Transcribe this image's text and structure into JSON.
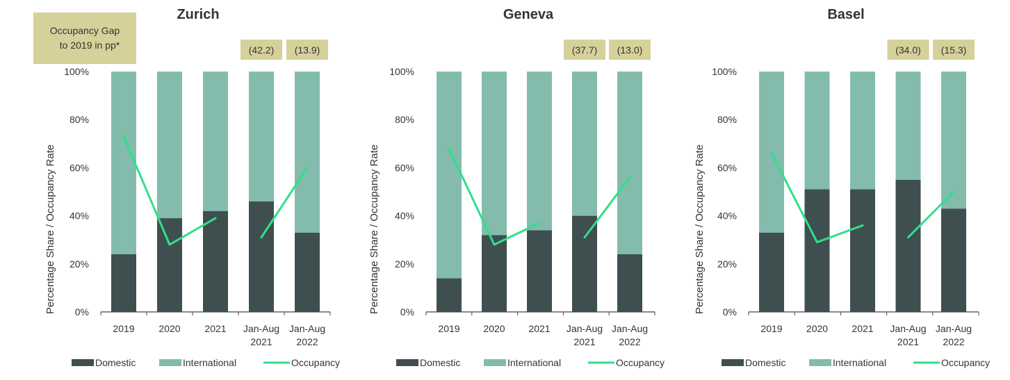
{
  "gap_note": {
    "line1": "Occupancy Gap",
    "line2": "to 2019 in pp*"
  },
  "colors": {
    "domestic": "#3f4f50",
    "international": "#83bcad",
    "occupancy": "#2fe08a",
    "gap_box": "#d5d19a",
    "axis": "#444444",
    "text": "#333333"
  },
  "chart_data": [
    {
      "type": "bar",
      "title": "Zurich",
      "ylabel": "Percentage Share / Occupancy Rate",
      "ylim": [
        0,
        100
      ],
      "yticks": [
        "0%",
        "20%",
        "40%",
        "60%",
        "80%",
        "100%"
      ],
      "categories": [
        [
          "2019"
        ],
        [
          "2020"
        ],
        [
          "2021"
        ],
        [
          "Jan-Aug",
          "2021"
        ],
        [
          "Jan-Aug",
          "2022"
        ]
      ],
      "series": [
        {
          "name": "Domestic",
          "type": "stacked-bar",
          "values": [
            24,
            39,
            42,
            46,
            33
          ]
        },
        {
          "name": "International",
          "type": "stacked-bar",
          "values": [
            76,
            61,
            58,
            54,
            67
          ]
        },
        {
          "name": "Occupancy",
          "type": "line",
          "segments": [
            [
              [
                0,
                73
              ],
              [
                1,
                28
              ],
              [
                2,
                39
              ]
            ],
            [
              [
                3,
                31
              ],
              [
                4,
                60
              ]
            ]
          ]
        }
      ],
      "gaps": [
        null,
        null,
        null,
        "(42.2)",
        "(13.9)"
      ],
      "legend": "bottom"
    },
    {
      "type": "bar",
      "title": "Geneva",
      "ylabel": "Percentage Share / Occupancy Rate",
      "ylim": [
        0,
        100
      ],
      "yticks": [
        "0%",
        "20%",
        "40%",
        "60%",
        "80%",
        "100%"
      ],
      "categories": [
        [
          "2019"
        ],
        [
          "2020"
        ],
        [
          "2021"
        ],
        [
          "Jan-Aug",
          "2021"
        ],
        [
          "Jan-Aug",
          "2022"
        ]
      ],
      "series": [
        {
          "name": "Domestic",
          "type": "stacked-bar",
          "values": [
            14,
            32,
            34,
            40,
            24
          ]
        },
        {
          "name": "International",
          "type": "stacked-bar",
          "values": [
            86,
            68,
            66,
            60,
            76
          ]
        },
        {
          "name": "Occupancy",
          "type": "line",
          "segments": [
            [
              [
                0,
                68
              ],
              [
                1,
                28
              ],
              [
                2,
                37
              ]
            ],
            [
              [
                3,
                31
              ],
              [
                4,
                56
              ]
            ]
          ]
        }
      ],
      "gaps": [
        null,
        null,
        null,
        "(37.7)",
        "(13.0)"
      ],
      "legend": "bottom"
    },
    {
      "type": "bar",
      "title": "Basel",
      "ylabel": "Percentage Share / Occupancy Rate",
      "ylim": [
        0,
        100
      ],
      "yticks": [
        "0%",
        "20%",
        "40%",
        "60%",
        "80%",
        "100%"
      ],
      "categories": [
        [
          "2019"
        ],
        [
          "2020"
        ],
        [
          "2021"
        ],
        [
          "Jan-Aug",
          "2021"
        ],
        [
          "Jan-Aug",
          "2022"
        ]
      ],
      "series": [
        {
          "name": "Domestic",
          "type": "stacked-bar",
          "values": [
            33,
            51,
            51,
            55,
            43
          ]
        },
        {
          "name": "International",
          "type": "stacked-bar",
          "values": [
            67,
            49,
            49,
            45,
            57
          ]
        },
        {
          "name": "Occupancy",
          "type": "line",
          "segments": [
            [
              [
                0,
                66
              ],
              [
                1,
                29
              ],
              [
                2,
                36
              ]
            ],
            [
              [
                3,
                31
              ],
              [
                4,
                50
              ]
            ]
          ]
        }
      ],
      "gaps": [
        null,
        null,
        null,
        "(34.0)",
        "(15.3)"
      ],
      "legend": "bottom"
    }
  ]
}
